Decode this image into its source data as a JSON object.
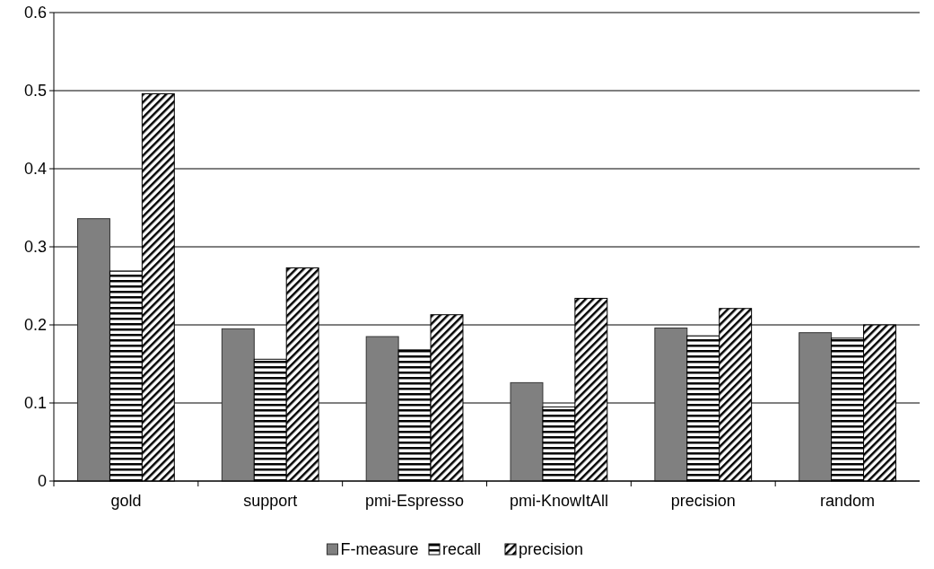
{
  "chart_data": {
    "type": "bar",
    "categories": [
      "gold",
      "support",
      "pmi-Espresso",
      "pmi-KnowItAll",
      "precision",
      "random"
    ],
    "series": [
      {
        "name": "F-measure",
        "color": "#808080",
        "values": [
          0.336,
          0.195,
          0.185,
          0.126,
          0.196,
          0.19
        ]
      },
      {
        "name": "recall",
        "color": "#000000",
        "values": [
          0.269,
          0.156,
          0.168,
          0.095,
          0.186,
          0.183
        ]
      },
      {
        "name": "precision",
        "color": "#000000",
        "values": [
          0.496,
          0.273,
          0.213,
          0.234,
          0.221,
          0.2
        ]
      }
    ],
    "ylim": [
      0,
      0.6
    ],
    "yticks": [
      0,
      0.1,
      0.2,
      0.3,
      0.4,
      0.5,
      0.6
    ],
    "grid": "y",
    "legend": "bottom"
  }
}
